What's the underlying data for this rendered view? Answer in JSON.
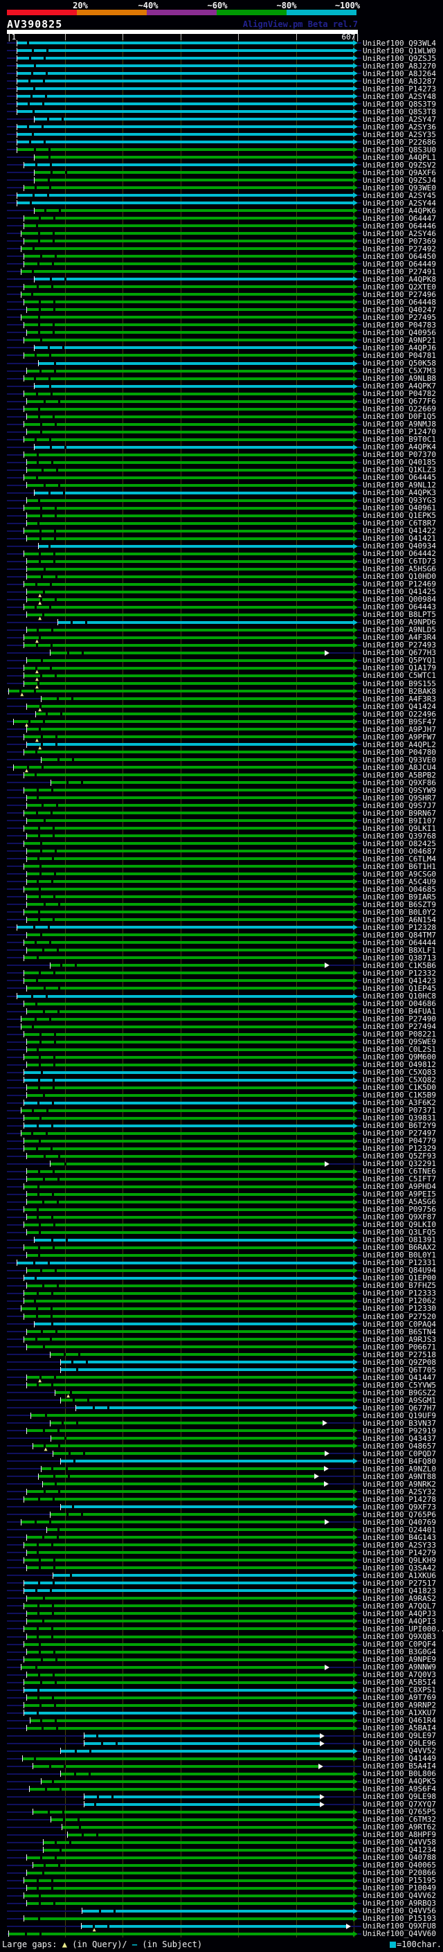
{
  "title": "AV390825",
  "watermark": "AlignView.pm Beta rel.7",
  "key": {
    "labels": [
      "20%",
      "~40%",
      "~60%",
      "~80%",
      "~100%"
    ],
    "colors": [
      "#ee1122",
      "#dd7704",
      "#8a2d92",
      "#009903",
      "#00b5c8"
    ]
  },
  "ruler": {
    "start_label": "|1",
    "end_label": "607|",
    "length": 607,
    "tick_interval": 100
  },
  "footer": {
    "large_gaps_prefix": "Large gaps:",
    "query_symbol": "▲",
    "query_text": "(in Query)/",
    "subject_symbol": "—",
    "subject_text": " (in Subject)",
    "scale_symbol": "■",
    "scale_text": "=100char."
  },
  "colors": {
    "green": "#00a205",
    "cyan": "#00bcd2",
    "lead": "#10105e",
    "grid": "#45450e",
    "label": "#ebebeb",
    "gap_marker": "#ecec8c",
    "open_arrow": "#f4f4f4"
  },
  "id_prefix": "UniRef100_",
  "rows": [
    [
      "Q93WL4",
      "c",
      18,
      607,
      ""
    ],
    [
      "Q1WLW0",
      "c",
      18,
      607,
      ""
    ],
    [
      "Q9ZSJ5",
      "c",
      18,
      607,
      ""
    ],
    [
      "A8J270",
      "c",
      18,
      607,
      ""
    ],
    [
      "A8J264",
      "c",
      18,
      607,
      ""
    ],
    [
      "A8J287",
      "c",
      18,
      607,
      ""
    ],
    [
      "P14273",
      "c",
      18,
      607,
      ""
    ],
    [
      "A2SY48",
      "c",
      18,
      607,
      ""
    ],
    [
      "Q8S3T9",
      "c",
      18,
      607,
      ""
    ],
    [
      "Q8S3T8",
      "c",
      18,
      607,
      ""
    ],
    [
      "A2SY47",
      "c",
      48,
      607,
      ""
    ],
    [
      "A2SY36",
      "c",
      18,
      607,
      ""
    ],
    [
      "A2SY35",
      "c",
      18,
      607,
      ""
    ],
    [
      "P22686",
      "c",
      18,
      607,
      ""
    ],
    [
      "Q8S3U0",
      "g",
      18,
      607,
      ""
    ],
    [
      "A4QPL1",
      "g",
      48,
      607,
      ""
    ],
    [
      "Q9ZSV2",
      "c",
      30,
      607,
      ""
    ],
    [
      "Q9AXF6",
      "g",
      48,
      607,
      ""
    ],
    [
      "Q9ZSJ4",
      "g",
      48,
      607,
      ""
    ],
    [
      "Q93WE0",
      "g",
      30,
      607,
      ""
    ],
    [
      "A2SY45",
      "c",
      18,
      607,
      ""
    ],
    [
      "A2SY44",
      "c",
      18,
      607,
      ""
    ],
    [
      "A4QPK6",
      "g",
      48,
      607,
      ""
    ],
    [
      "O64447",
      "g",
      30,
      607,
      ""
    ],
    [
      "O64446",
      "g",
      30,
      607,
      ""
    ],
    [
      "A2SY46",
      "g",
      25,
      607,
      ""
    ],
    [
      "P07369",
      "g",
      30,
      607,
      ""
    ],
    [
      "P27492",
      "g",
      25,
      607,
      ""
    ],
    [
      "O64450",
      "g",
      30,
      607,
      ""
    ],
    [
      "O64449",
      "g",
      30,
      607,
      ""
    ],
    [
      "P27491",
      "g",
      25,
      607,
      ""
    ],
    [
      "A4QPK8",
      "c",
      48,
      607,
      ""
    ],
    [
      "Q2XTE0",
      "g",
      30,
      607,
      ""
    ],
    [
      "P27496",
      "g",
      25,
      607,
      ""
    ],
    [
      "O64448",
      "g",
      30,
      607,
      ""
    ],
    [
      "Q40247",
      "g",
      35,
      607,
      ""
    ],
    [
      "P27495",
      "g",
      25,
      607,
      ""
    ],
    [
      "P04783",
      "g",
      30,
      607,
      ""
    ],
    [
      "Q40956",
      "g",
      35,
      607,
      ""
    ],
    [
      "A9NP21",
      "g",
      30,
      607,
      ""
    ],
    [
      "A4QPJ6",
      "c",
      48,
      607,
      ""
    ],
    [
      "P04781",
      "g",
      30,
      607,
      ""
    ],
    [
      "Q50K58",
      "c",
      55,
      607,
      ""
    ],
    [
      "C5X7M3",
      "g",
      35,
      607,
      ""
    ],
    [
      "A9NLB8",
      "g",
      30,
      607,
      ""
    ],
    [
      "A4QPK7",
      "c",
      48,
      607,
      ""
    ],
    [
      "P04782",
      "g",
      30,
      607,
      ""
    ],
    [
      "Q677F6",
      "g",
      35,
      607,
      ""
    ],
    [
      "O22669",
      "g",
      30,
      607,
      ""
    ],
    [
      "D0F1Q5",
      "g",
      35,
      607,
      ""
    ],
    [
      "A9NMJ8",
      "g",
      30,
      607,
      ""
    ],
    [
      "P12470",
      "g",
      35,
      607,
      ""
    ],
    [
      "B9T0C1",
      "g",
      30,
      607,
      ""
    ],
    [
      "A4QPK4",
      "c",
      48,
      607,
      ""
    ],
    [
      "P07370",
      "g",
      30,
      607,
      ""
    ],
    [
      "Q40185",
      "g",
      35,
      607,
      ""
    ],
    [
      "Q1KLZ3",
      "g",
      35,
      607,
      ""
    ],
    [
      "O64445",
      "g",
      30,
      607,
      ""
    ],
    [
      "A9NL12",
      "g",
      35,
      607,
      ""
    ],
    [
      "A4QPK3",
      "c",
      48,
      607,
      ""
    ],
    [
      "Q93YG3",
      "g",
      35,
      607,
      ""
    ],
    [
      "Q40961",
      "g",
      30,
      607,
      ""
    ],
    [
      "Q1EPK5",
      "g",
      35,
      607,
      ""
    ],
    [
      "C6T8R7",
      "g",
      35,
      607,
      ""
    ],
    [
      "Q41422",
      "g",
      30,
      607,
      ""
    ],
    [
      "Q41421",
      "g",
      35,
      607,
      ""
    ],
    [
      "Q40934",
      "c",
      55,
      607,
      ""
    ],
    [
      "O64442",
      "g",
      30,
      607,
      ""
    ],
    [
      "C6TD73",
      "g",
      35,
      607,
      ""
    ],
    [
      "A5HSG6",
      "g",
      35,
      607,
      ""
    ],
    [
      "Q10HD0",
      "g",
      35,
      607,
      ""
    ],
    [
      "P12469",
      "g",
      30,
      607,
      ""
    ],
    [
      "Q41425",
      "g",
      35,
      607,
      "t"
    ],
    [
      "Q00984",
      "g",
      35,
      607,
      "t"
    ],
    [
      "O64443",
      "g",
      30,
      607,
      ""
    ],
    [
      "B8LPT5",
      "g",
      35,
      607,
      "t"
    ],
    [
      "A9NPD6",
      "c",
      88,
      607,
      ""
    ],
    [
      "A9NLD5",
      "g",
      35,
      607,
      ""
    ],
    [
      "A4F3R4",
      "g",
      30,
      607,
      "t"
    ],
    [
      "P27493",
      "g",
      30,
      607,
      ""
    ],
    [
      "Q677H3",
      "g",
      75,
      558,
      "o"
    ],
    [
      "Q5PYQ1",
      "g",
      35,
      607,
      ""
    ],
    [
      "Q1A179",
      "g",
      30,
      607,
      "t"
    ],
    [
      "C5WTC1",
      "g",
      30,
      607,
      "t"
    ],
    [
      "B9S155",
      "g",
      30,
      607,
      "t"
    ],
    [
      "B2BAK8",
      "g",
      4,
      607,
      "t"
    ],
    [
      "A4F3R3",
      "g",
      60,
      607,
      ""
    ],
    [
      "Q41424",
      "g",
      35,
      607,
      "t"
    ],
    [
      "O22496",
      "g",
      50,
      607,
      ""
    ],
    [
      "B9SF47",
      "g",
      12,
      607,
      "t"
    ],
    [
      "A9PJH7",
      "g",
      35,
      607,
      ""
    ],
    [
      "A9PFW7",
      "g",
      30,
      607,
      "t"
    ],
    [
      "A4QPL2",
      "c",
      35,
      607,
      "t"
    ],
    [
      "P04780",
      "g",
      30,
      607,
      ""
    ],
    [
      "Q93VE0",
      "g",
      60,
      607,
      ""
    ],
    [
      "A8JCU4",
      "g",
      12,
      607,
      "t"
    ],
    [
      "A5BPB2",
      "g",
      30,
      607,
      ""
    ],
    [
      "Q9XF86",
      "g",
      77,
      607,
      ""
    ],
    [
      "Q9SYW9",
      "g",
      30,
      607,
      ""
    ],
    [
      "Q9SHR7",
      "g",
      35,
      607,
      ""
    ],
    [
      "Q9S7J7",
      "g",
      35,
      607,
      ""
    ],
    [
      "B9RN67",
      "g",
      30,
      607,
      ""
    ],
    [
      "B9I107",
      "g",
      35,
      607,
      ""
    ],
    [
      "Q9LKI1",
      "g",
      30,
      607,
      ""
    ],
    [
      "Q39768",
      "g",
      35,
      607,
      ""
    ],
    [
      "O82425",
      "g",
      30,
      607,
      ""
    ],
    [
      "O04687",
      "g",
      35,
      607,
      ""
    ],
    [
      "C6TLM4",
      "g",
      35,
      607,
      ""
    ],
    [
      "B6T1H1",
      "g",
      30,
      607,
      ""
    ],
    [
      "A9CSG0",
      "g",
      35,
      607,
      ""
    ],
    [
      "A5C4U9",
      "g",
      35,
      607,
      ""
    ],
    [
      "O04685",
      "g",
      30,
      607,
      ""
    ],
    [
      "B9IAR5",
      "g",
      35,
      607,
      ""
    ],
    [
      "B6SZT9",
      "g",
      35,
      607,
      ""
    ],
    [
      "B0L0Y2",
      "g",
      30,
      607,
      ""
    ],
    [
      "A6N154",
      "g",
      35,
      607,
      ""
    ],
    [
      "P12328",
      "c",
      18,
      607,
      ""
    ],
    [
      "Q84TM7",
      "g",
      35,
      607,
      ""
    ],
    [
      "O64444",
      "g",
      30,
      607,
      ""
    ],
    [
      "B8XLF1",
      "g",
      35,
      607,
      ""
    ],
    [
      "Q38713",
      "g",
      30,
      607,
      ""
    ],
    [
      "C1K5B6",
      "g",
      75,
      558,
      "o"
    ],
    [
      "P12332",
      "g",
      30,
      607,
      ""
    ],
    [
      "Q41423",
      "g",
      30,
      607,
      ""
    ],
    [
      "Q1EP45",
      "g",
      35,
      607,
      ""
    ],
    [
      "Q10HC8",
      "c",
      18,
      607,
      ""
    ],
    [
      "O04686",
      "g",
      30,
      607,
      ""
    ],
    [
      "B4FUA1",
      "g",
      35,
      607,
      ""
    ],
    [
      "P27490",
      "g",
      25,
      607,
      ""
    ],
    [
      "P27494",
      "g",
      25,
      607,
      ""
    ],
    [
      "P08221",
      "g",
      30,
      607,
      ""
    ],
    [
      "Q9SWE9",
      "g",
      35,
      607,
      ""
    ],
    [
      "C0L2S1",
      "g",
      35,
      607,
      ""
    ],
    [
      "Q9M600",
      "g",
      30,
      607,
      ""
    ],
    [
      "O49812",
      "g",
      35,
      607,
      ""
    ],
    [
      "C5XQ83",
      "c",
      30,
      607,
      ""
    ],
    [
      "C5XQ82",
      "c",
      30,
      607,
      ""
    ],
    [
      "C1K5D0",
      "g",
      35,
      607,
      ""
    ],
    [
      "C1K5B9",
      "g",
      35,
      607,
      ""
    ],
    [
      "A3F6K2",
      "c",
      30,
      607,
      ""
    ],
    [
      "P07371",
      "g",
      25,
      607,
      ""
    ],
    [
      "Q39831",
      "g",
      30,
      607,
      ""
    ],
    [
      "B6T2Y9",
      "c",
      30,
      607,
      ""
    ],
    [
      "P27497",
      "g",
      25,
      607,
      ""
    ],
    [
      "P04779",
      "g",
      30,
      607,
      ""
    ],
    [
      "P12329",
      "g",
      30,
      607,
      ""
    ],
    [
      "Q5ZF93",
      "g",
      35,
      607,
      ""
    ],
    [
      "Q32291",
      "g",
      75,
      558,
      "o"
    ],
    [
      "C6TNE6",
      "g",
      35,
      607,
      ""
    ],
    [
      "C5IFT7",
      "g",
      35,
      607,
      ""
    ],
    [
      "A9PHD4",
      "g",
      30,
      607,
      ""
    ],
    [
      "A9PEI5",
      "g",
      35,
      607,
      ""
    ],
    [
      "A5ASG6",
      "g",
      35,
      607,
      ""
    ],
    [
      "P09756",
      "g",
      30,
      607,
      ""
    ],
    [
      "Q9XF87",
      "g",
      35,
      607,
      ""
    ],
    [
      "Q9LKI0",
      "g",
      30,
      607,
      ""
    ],
    [
      "Q3LFQ5",
      "g",
      35,
      607,
      ""
    ],
    [
      "O81391",
      "c",
      48,
      607,
      ""
    ],
    [
      "B6RAX2",
      "g",
      30,
      607,
      ""
    ],
    [
      "B0L0Y1",
      "g",
      35,
      607,
      ""
    ],
    [
      "P12331",
      "c",
      18,
      607,
      ""
    ],
    [
      "Q84U94",
      "g",
      35,
      607,
      ""
    ],
    [
      "Q1EP00",
      "c",
      30,
      607,
      ""
    ],
    [
      "B7FHZ5",
      "g",
      35,
      607,
      ""
    ],
    [
      "P12333",
      "g",
      30,
      607,
      ""
    ],
    [
      "P12062",
      "g",
      30,
      607,
      ""
    ],
    [
      "P12330",
      "g",
      25,
      607,
      ""
    ],
    [
      "P27520",
      "g",
      30,
      607,
      ""
    ],
    [
      "C0PAQ4",
      "c",
      48,
      607,
      ""
    ],
    [
      "B6STN4",
      "g",
      35,
      607,
      ""
    ],
    [
      "A9RJS3",
      "g",
      30,
      607,
      ""
    ],
    [
      "P06671",
      "g",
      35,
      607,
      ""
    ],
    [
      "P27518",
      "g",
      75,
      607,
      ""
    ],
    [
      "Q9ZP08",
      "c",
      93,
      607,
      ""
    ],
    [
      "Q6T705",
      "c",
      93,
      607,
      ""
    ],
    [
      "Q41447",
      "g",
      35,
      607,
      "t"
    ],
    [
      "C5YVW5",
      "g",
      35,
      607,
      ""
    ],
    [
      "B9GSZ2",
      "g",
      84,
      607,
      "t"
    ],
    [
      "A9SGM1",
      "g",
      93,
      607,
      ""
    ],
    [
      "Q677H7",
      "c",
      120,
      607,
      ""
    ],
    [
      "Q19UF9",
      "g",
      42,
      607,
      ""
    ],
    [
      "B3VN37",
      "g",
      75,
      554,
      "o"
    ],
    [
      "P92919",
      "g",
      35,
      607,
      ""
    ],
    [
      "Q43437",
      "g",
      77,
      607,
      ""
    ],
    [
      "O48657",
      "g",
      45,
      607,
      "t"
    ],
    [
      "C0PQD7",
      "g",
      80,
      558,
      "o"
    ],
    [
      "B4FQ80",
      "c",
      93,
      607,
      ""
    ],
    [
      "A9NZL0",
      "g",
      60,
      557,
      "o"
    ],
    [
      "A9NT88",
      "g",
      55,
      540,
      "o"
    ],
    [
      "A9NRK2",
      "g",
      62,
      557,
      "o"
    ],
    [
      "A2SY32",
      "g",
      35,
      607,
      ""
    ],
    [
      "P14278",
      "g",
      30,
      607,
      ""
    ],
    [
      "Q9XF73",
      "c",
      93,
      607,
      ""
    ],
    [
      "Q765P6",
      "g",
      75,
      607,
      ""
    ],
    [
      "Q40769",
      "g",
      25,
      558,
      "o"
    ],
    [
      "O24401",
      "g",
      70,
      607,
      ""
    ],
    [
      "B4G143",
      "g",
      35,
      607,
      ""
    ],
    [
      "A2SY33",
      "g",
      30,
      607,
      ""
    ],
    [
      "P14279",
      "g",
      35,
      607,
      ""
    ],
    [
      "Q9LKH9",
      "g",
      30,
      607,
      ""
    ],
    [
      "Q3SA42",
      "g",
      35,
      607,
      ""
    ],
    [
      "A1XKU6",
      "c",
      80,
      607,
      ""
    ],
    [
      "P27517",
      "c",
      30,
      607,
      ""
    ],
    [
      "Q41823",
      "c",
      30,
      607,
      ""
    ],
    [
      "A9RAS2",
      "g",
      35,
      607,
      ""
    ],
    [
      "A7QQL7",
      "g",
      30,
      607,
      ""
    ],
    [
      "A4QPJ3",
      "g",
      35,
      607,
      ""
    ],
    [
      "A4QPI3",
      "g",
      35,
      607,
      ""
    ],
    [
      "UPI000..",
      "g",
      30,
      607,
      ""
    ],
    [
      "Q9XQB3",
      "g",
      35,
      607,
      ""
    ],
    [
      "C0PQF4",
      "g",
      30,
      607,
      ""
    ],
    [
      "B3G0G4",
      "g",
      35,
      607,
      ""
    ],
    [
      "A9NPE9",
      "g",
      30,
      607,
      ""
    ],
    [
      "A9NNW9",
      "g",
      25,
      558,
      "o"
    ],
    [
      "A7Q0V3",
      "g",
      35,
      607,
      ""
    ],
    [
      "A5B5I4",
      "g",
      30,
      607,
      ""
    ],
    [
      "C8XPS1",
      "c",
      30,
      607,
      ""
    ],
    [
      "A9T769",
      "g",
      35,
      607,
      ""
    ],
    [
      "A9RNP2",
      "g",
      30,
      607,
      ""
    ],
    [
      "A1XKU7",
      "c",
      30,
      607,
      ""
    ],
    [
      "Q461R4",
      "g",
      41,
      607,
      ""
    ],
    [
      "A5BAI4",
      "g",
      35,
      607,
      ""
    ],
    [
      "Q9LE97",
      "c",
      134,
      549,
      "o"
    ],
    [
      "Q9LE96",
      "c",
      134,
      549,
      "o"
    ],
    [
      "Q4VV52",
      "c",
      93,
      607,
      ""
    ],
    [
      "Q41449",
      "g",
      28,
      607,
      ""
    ],
    [
      "B5A4I4",
      "g",
      45,
      547,
      "o"
    ],
    [
      "B0L806",
      "g",
      93,
      607,
      ""
    ],
    [
      "A4QPK5",
      "g",
      60,
      607,
      ""
    ],
    [
      "A9S6F4",
      "g",
      40,
      607,
      ""
    ],
    [
      "Q9LE98",
      "c",
      134,
      549,
      "o"
    ],
    [
      "Q7XYQ7",
      "c",
      134,
      549,
      "o"
    ],
    [
      "Q765P5",
      "g",
      45,
      607,
      ""
    ],
    [
      "C6TM32",
      "g",
      77,
      607,
      ""
    ],
    [
      "A9RT62",
      "g",
      96,
      607,
      ""
    ],
    [
      "A8HPF9",
      "g",
      105,
      607,
      ""
    ],
    [
      "Q4VV58",
      "g",
      63,
      607,
      ""
    ],
    [
      "Q41234",
      "g",
      63,
      607,
      ""
    ],
    [
      "Q40788",
      "g",
      35,
      607,
      ""
    ],
    [
      "Q40065",
      "g",
      45,
      607,
      ""
    ],
    [
      "P20866",
      "g",
      35,
      607,
      ""
    ],
    [
      "P15195",
      "g",
      30,
      607,
      ""
    ],
    [
      "P10049",
      "g",
      35,
      607,
      ""
    ],
    [
      "Q4VV62",
      "g",
      30,
      607,
      ""
    ],
    [
      "A9RBQ3",
      "g",
      35,
      607,
      ""
    ],
    [
      "Q4VV56",
      "c",
      130,
      607,
      ""
    ],
    [
      "P15193",
      "g",
      30,
      607,
      ""
    ],
    [
      "Q9XFU8",
      "c",
      129,
      595,
      "ot"
    ],
    [
      "Q4VV60",
      "g",
      4,
      607,
      ""
    ]
  ]
}
